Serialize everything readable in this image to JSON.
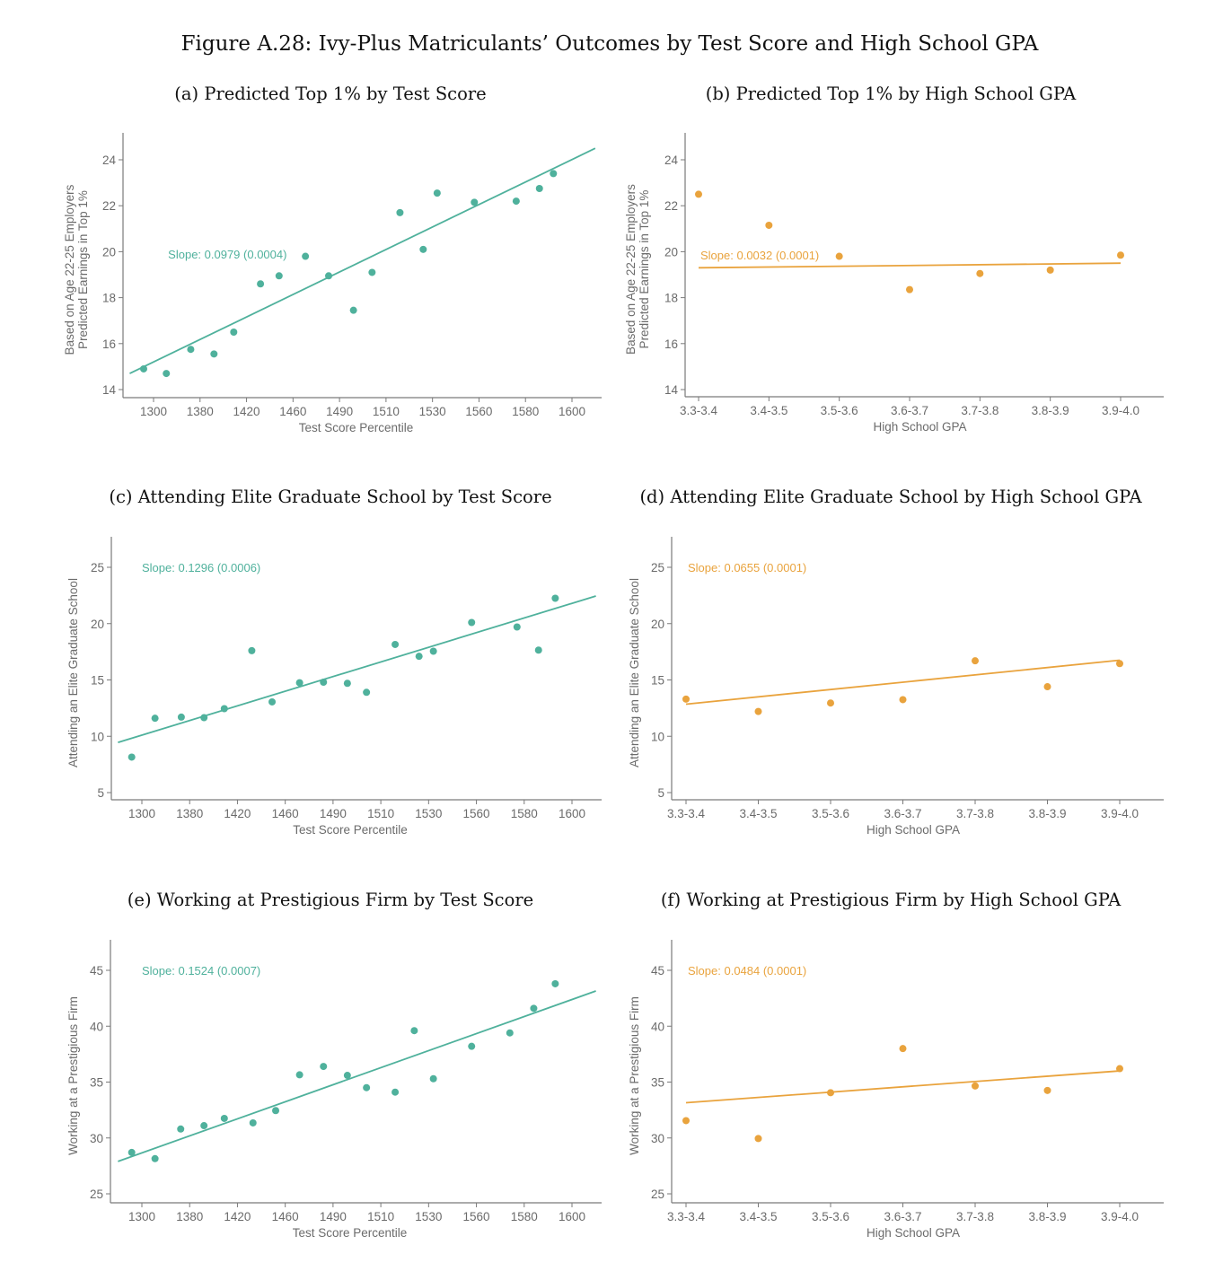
{
  "figure_title": "Figure A.28:  Ivy-Plus Matriculants’ Outcomes by Test Score and High School GPA",
  "colors": {
    "test_score": "#4fb19c",
    "gpa": "#e9a33d",
    "axis": "#7a7a7a",
    "text": "#6b6b6b"
  },
  "chart_data": [
    {
      "id": "a",
      "type": "scatter",
      "title": "(a) Predicted Top 1% by Test Score",
      "xlabel": "Test Score Percentile",
      "ylabel": [
        "Predicted Earnings in Top 1%",
        "Based on Age 22-25 Employers"
      ],
      "x_ticks": [
        "1300",
        "1380",
        "1420",
        "1460",
        "1490",
        "1510",
        "1530",
        "1560",
        "1580",
        "1600"
      ],
      "x_tick_values": [
        1300,
        1380,
        1420,
        1460,
        1490,
        1510,
        1530,
        1560,
        1580,
        1600
      ],
      "y_ticks": [
        "14",
        "16",
        "18",
        "20",
        "22",
        "24"
      ],
      "y_tick_values": [
        14,
        16,
        18,
        20,
        22,
        24
      ],
      "ylim": [
        13.7,
        25.1
      ],
      "color": "test_score",
      "slope_text": "Slope: 0.0979 (0.0004)",
      "slope_anchor": [
        1325,
        19.9
      ],
      "points": [
        [
          1283,
          14.9
        ],
        [
          1322,
          14.7
        ],
        [
          1364,
          15.75
        ],
        [
          1392,
          15.55
        ],
        [
          1409,
          16.5
        ],
        [
          1432,
          18.6
        ],
        [
          1448,
          18.95
        ],
        [
          1468,
          19.8
        ],
        [
          1483,
          18.95
        ],
        [
          1496,
          17.45
        ],
        [
          1504,
          19.1
        ],
        [
          1516,
          21.7
        ],
        [
          1526,
          20.1
        ],
        [
          1533,
          22.55
        ],
        [
          1557,
          22.15
        ],
        [
          1576,
          22.2
        ],
        [
          1586,
          22.75
        ],
        [
          1592,
          23.4
        ]
      ],
      "fit_line": [
        [
          1259,
          14.7
        ],
        [
          1610,
          24.5
        ]
      ],
      "grid": false
    },
    {
      "id": "b",
      "type": "scatter",
      "title": "(b)  Predicted Top 1% by High School GPA",
      "xlabel": "High School GPA",
      "ylabel": [
        "Predicted Earnings in Top 1%",
        "Based on Age 22-25 Employers"
      ],
      "x_ticks": [
        "3.3-3.4",
        "3.4-3.5",
        "3.5-3.6",
        "3.6-3.7",
        "3.7-3.8",
        "3.8-3.9",
        "3.9-4.0"
      ],
      "y_ticks": [
        "14",
        "16",
        "18",
        "20",
        "22",
        "24"
      ],
      "y_tick_values": [
        14,
        16,
        18,
        20,
        22,
        24
      ],
      "ylim": [
        13.7,
        25.1
      ],
      "color": "gpa",
      "slope_text": "Slope: 0.0032 (0.0001)",
      "slope_anchor": [
        0,
        19.85
      ],
      "points": [
        [
          "3.3-3.4",
          22.5
        ],
        [
          "3.4-3.5",
          21.15
        ],
        [
          "3.5-3.6",
          19.8
        ],
        [
          "3.6-3.7",
          18.35
        ],
        [
          "3.7-3.8",
          19.05
        ],
        [
          "3.8-3.9",
          19.2
        ],
        [
          "3.9-4.0",
          19.85
        ]
      ],
      "fit_line": [
        [
          "3.3-3.4",
          19.3
        ],
        [
          "3.9-4.0",
          19.5
        ]
      ],
      "grid": false
    },
    {
      "id": "c",
      "type": "scatter",
      "title": "(c) Attending Elite Graduate School by Test Score",
      "xlabel": "Test Score Percentile",
      "ylabel": [
        "Attending an Elite Graduate School"
      ],
      "x_ticks": [
        "1300",
        "1380",
        "1420",
        "1460",
        "1490",
        "1510",
        "1530",
        "1560",
        "1580",
        "1600"
      ],
      "x_tick_values": [
        1300,
        1380,
        1420,
        1460,
        1490,
        1510,
        1530,
        1560,
        1580,
        1600
      ],
      "y_ticks": [
        "5",
        "10",
        "15",
        "20",
        "25"
      ],
      "y_tick_values": [
        5,
        10,
        15,
        20,
        25
      ],
      "ylim": [
        4.4,
        27.8
      ],
      "color": "test_score",
      "slope_text": "Slope: 0.1296 (0.0006)",
      "slope_anchor": [
        1300,
        25
      ],
      "points": [
        [
          1283,
          8.15
        ],
        [
          1322,
          11.6
        ],
        [
          1366,
          11.7
        ],
        [
          1392,
          11.65
        ],
        [
          1409,
          12.45
        ],
        [
          1432,
          17.6
        ],
        [
          1449,
          13.05
        ],
        [
          1469,
          14.75
        ],
        [
          1484,
          14.8
        ],
        [
          1496,
          14.7
        ],
        [
          1504,
          13.9
        ],
        [
          1516,
          18.15
        ],
        [
          1526,
          17.1
        ],
        [
          1533,
          17.55
        ],
        [
          1557,
          20.1
        ],
        [
          1577,
          19.7
        ],
        [
          1586,
          17.65
        ],
        [
          1593,
          22.25
        ]
      ],
      "fit_line": [
        [
          1260,
          9.45
        ],
        [
          1610,
          22.45
        ]
      ],
      "grid": false
    },
    {
      "id": "d",
      "type": "scatter",
      "title": "(d) Attending Elite Graduate School by High School GPA",
      "xlabel": "High School GPA",
      "ylabel": [
        "Attending an Elite Graduate School"
      ],
      "x_ticks": [
        "3.3-3.4",
        "3.4-3.5",
        "3.5-3.6",
        "3.6-3.7",
        "3.7-3.8",
        "3.8-3.9",
        "3.9-4.0"
      ],
      "y_ticks": [
        "5",
        "10",
        "15",
        "20",
        "25"
      ],
      "y_tick_values": [
        5,
        10,
        15,
        20,
        25
      ],
      "ylim": [
        4.4,
        27.8
      ],
      "color": "gpa",
      "slope_text": "Slope: 0.0655 (0.0001)",
      "slope_anchor": [
        0,
        25
      ],
      "points": [
        [
          "3.3-3.4",
          13.3
        ],
        [
          "3.4-3.5",
          12.2
        ],
        [
          "3.5-3.6",
          12.95
        ],
        [
          "3.6-3.7",
          13.25
        ],
        [
          "3.7-3.8",
          16.7
        ],
        [
          "3.8-3.9",
          14.4
        ],
        [
          "3.9-4.0",
          16.45
        ]
      ],
      "fit_line": [
        [
          "3.3-3.4",
          12.85
        ],
        [
          "3.9-4.0",
          16.75
        ]
      ],
      "grid": false
    },
    {
      "id": "e",
      "type": "scatter",
      "title": "(e) Working at Prestigious Firm by Test Score",
      "xlabel": "Test Score Percentile",
      "ylabel": [
        "Working at a Prestigious Firm"
      ],
      "x_ticks": [
        "1300",
        "1380",
        "1420",
        "1460",
        "1490",
        "1510",
        "1530",
        "1560",
        "1580",
        "1600"
      ],
      "x_tick_values": [
        1300,
        1380,
        1420,
        1460,
        1490,
        1510,
        1530,
        1560,
        1580,
        1600
      ],
      "y_ticks": [
        "25",
        "30",
        "35",
        "40",
        "45"
      ],
      "y_tick_values": [
        25,
        30,
        35,
        40,
        45
      ],
      "ylim": [
        24.6,
        47.7
      ],
      "color": "test_score",
      "slope_text": "Slope: 0.1524 (0.0007)",
      "slope_anchor": [
        1300,
        45
      ],
      "points": [
        [
          1283,
          28.7
        ],
        [
          1322,
          28.15
        ],
        [
          1365,
          30.8
        ],
        [
          1392,
          31.1
        ],
        [
          1409,
          31.75
        ],
        [
          1433,
          31.35
        ],
        [
          1452,
          32.45
        ],
        [
          1469,
          35.65
        ],
        [
          1484,
          36.4
        ],
        [
          1496,
          35.6
        ],
        [
          1504,
          34.5
        ],
        [
          1516,
          34.1
        ],
        [
          1524,
          39.6
        ],
        [
          1533,
          35.3
        ],
        [
          1557,
          38.2
        ],
        [
          1574,
          39.4
        ],
        [
          1584,
          41.6
        ],
        [
          1593,
          43.8
        ]
      ],
      "fit_line": [
        [
          1260,
          27.9
        ],
        [
          1610,
          43.15
        ]
      ],
      "grid": false
    },
    {
      "id": "f",
      "type": "scatter",
      "title": "(f) Working at Prestigious Firm by High School GPA",
      "xlabel": "High School GPA",
      "ylabel": [
        "Working at a Prestigious Firm"
      ],
      "x_ticks": [
        "3.3-3.4",
        "3.4-3.5",
        "3.5-3.6",
        "3.6-3.7",
        "3.7-3.8",
        "3.8-3.9",
        "3.9-4.0"
      ],
      "y_ticks": [
        "25",
        "30",
        "35",
        "40",
        "45"
      ],
      "y_tick_values": [
        25,
        30,
        35,
        40,
        45
      ],
      "ylim": [
        24.6,
        47.7
      ],
      "color": "gpa",
      "slope_text": "Slope: 0.0484 (0.0001)",
      "slope_anchor": [
        0,
        45
      ],
      "points": [
        [
          "3.3-3.4",
          31.55
        ],
        [
          "3.4-3.5",
          29.95
        ],
        [
          "3.5-3.6",
          34.05
        ],
        [
          "3.6-3.7",
          38.0
        ],
        [
          "3.7-3.8",
          34.65
        ],
        [
          "3.8-3.9",
          34.25
        ],
        [
          "3.9-4.0",
          36.2
        ]
      ],
      "fit_line": [
        [
          "3.3-3.4",
          33.15
        ],
        [
          "3.9-4.0",
          36.0
        ]
      ],
      "grid": false
    }
  ]
}
